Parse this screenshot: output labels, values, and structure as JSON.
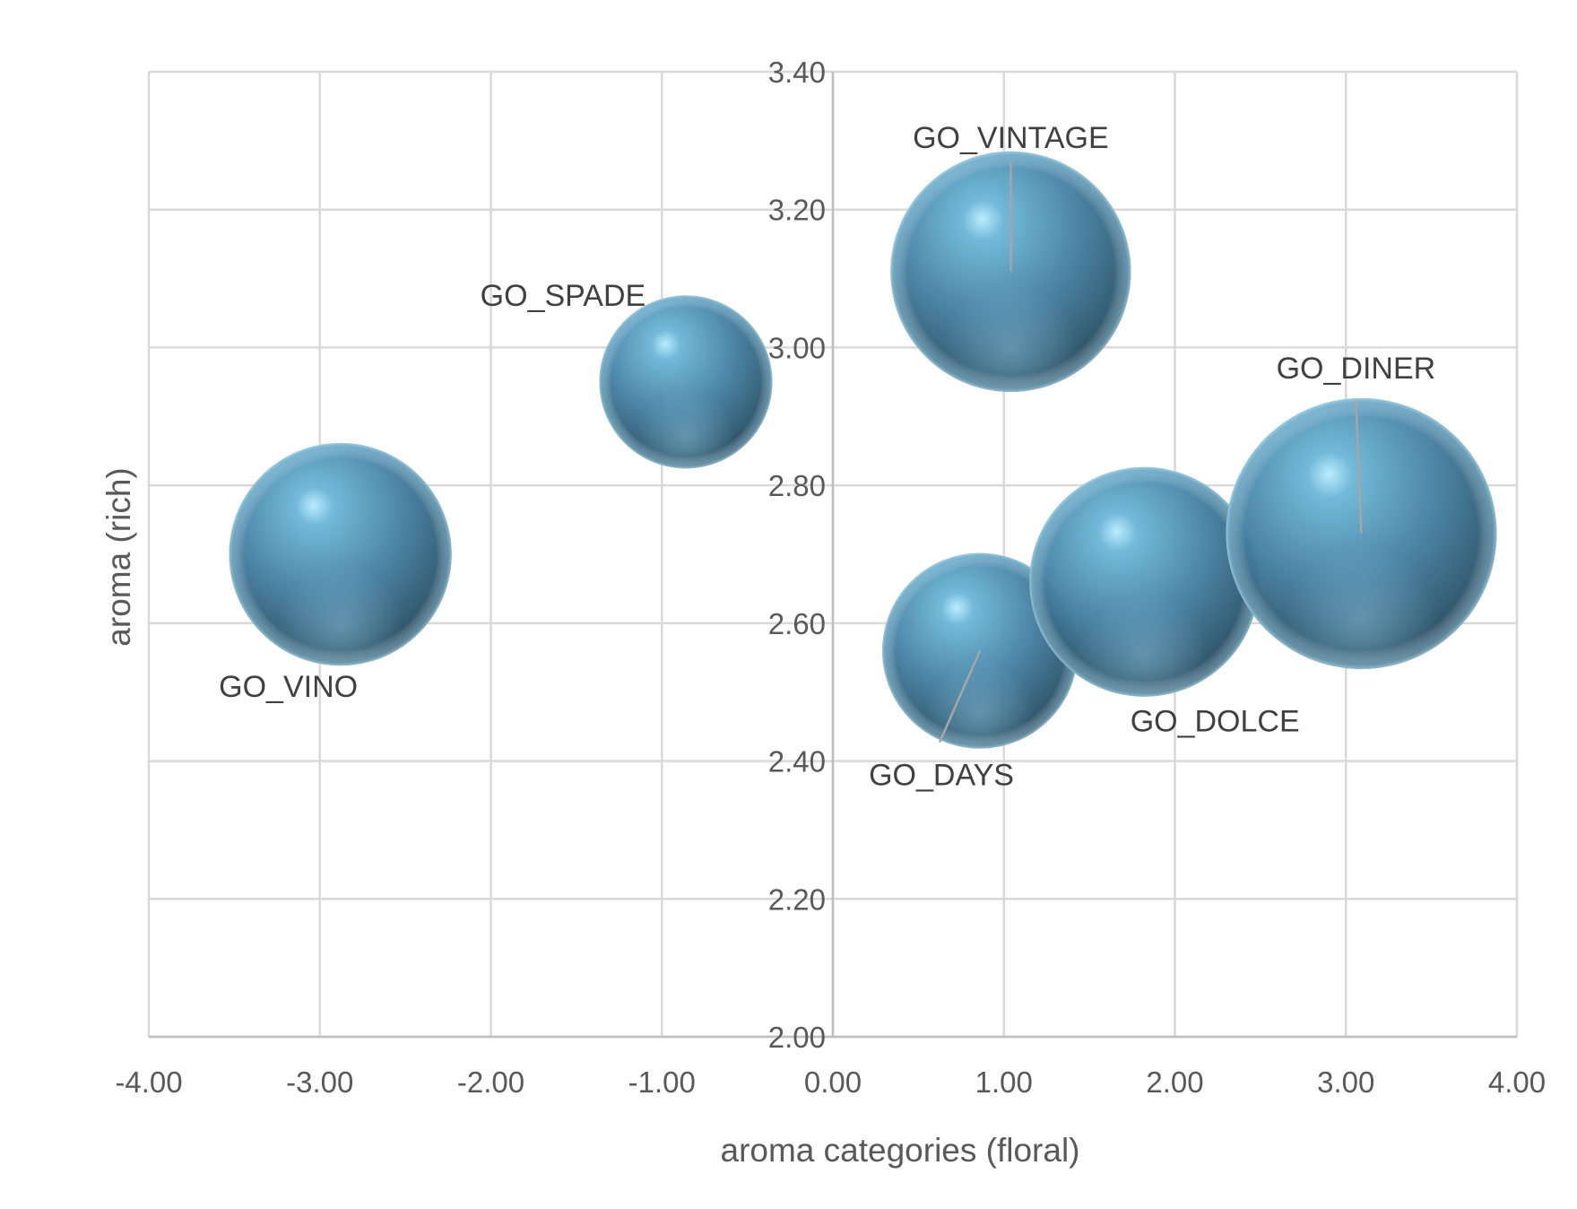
{
  "chart_data": {
    "type": "bubble",
    "xlabel": "aroma categories (floral)",
    "ylabel": "aroma  (rich)",
    "xlim": [
      -4.0,
      4.0
    ],
    "ylim": [
      2.0,
      3.4
    ],
    "x_ticks": [
      "-4.00",
      "-3.00",
      "-2.00",
      "-1.00",
      "0.00",
      "1.00",
      "2.00",
      "3.00",
      "4.00"
    ],
    "y_ticks": [
      "2.00",
      "2.20",
      "2.40",
      "2.60",
      "2.80",
      "3.00",
      "3.20",
      "3.40"
    ],
    "grid": true,
    "bubble_color": "#4f87a8",
    "points": [
      {
        "label": "GO_VINO",
        "x": -2.88,
        "y": 2.7,
        "size": 48
      },
      {
        "label": "GO_SPADE",
        "x": -0.86,
        "y": 2.95,
        "size": 29
      },
      {
        "label": "GO_VINTAGE",
        "x": 1.04,
        "y": 3.11,
        "size": 56
      },
      {
        "label": "GO_DAYS",
        "x": 0.86,
        "y": 2.56,
        "size": 37
      },
      {
        "label": "GO_DOLCE",
        "x": 1.82,
        "y": 2.66,
        "size": 51
      },
      {
        "label": "GO_DINER",
        "x": 3.09,
        "y": 2.73,
        "size": 71
      }
    ]
  }
}
